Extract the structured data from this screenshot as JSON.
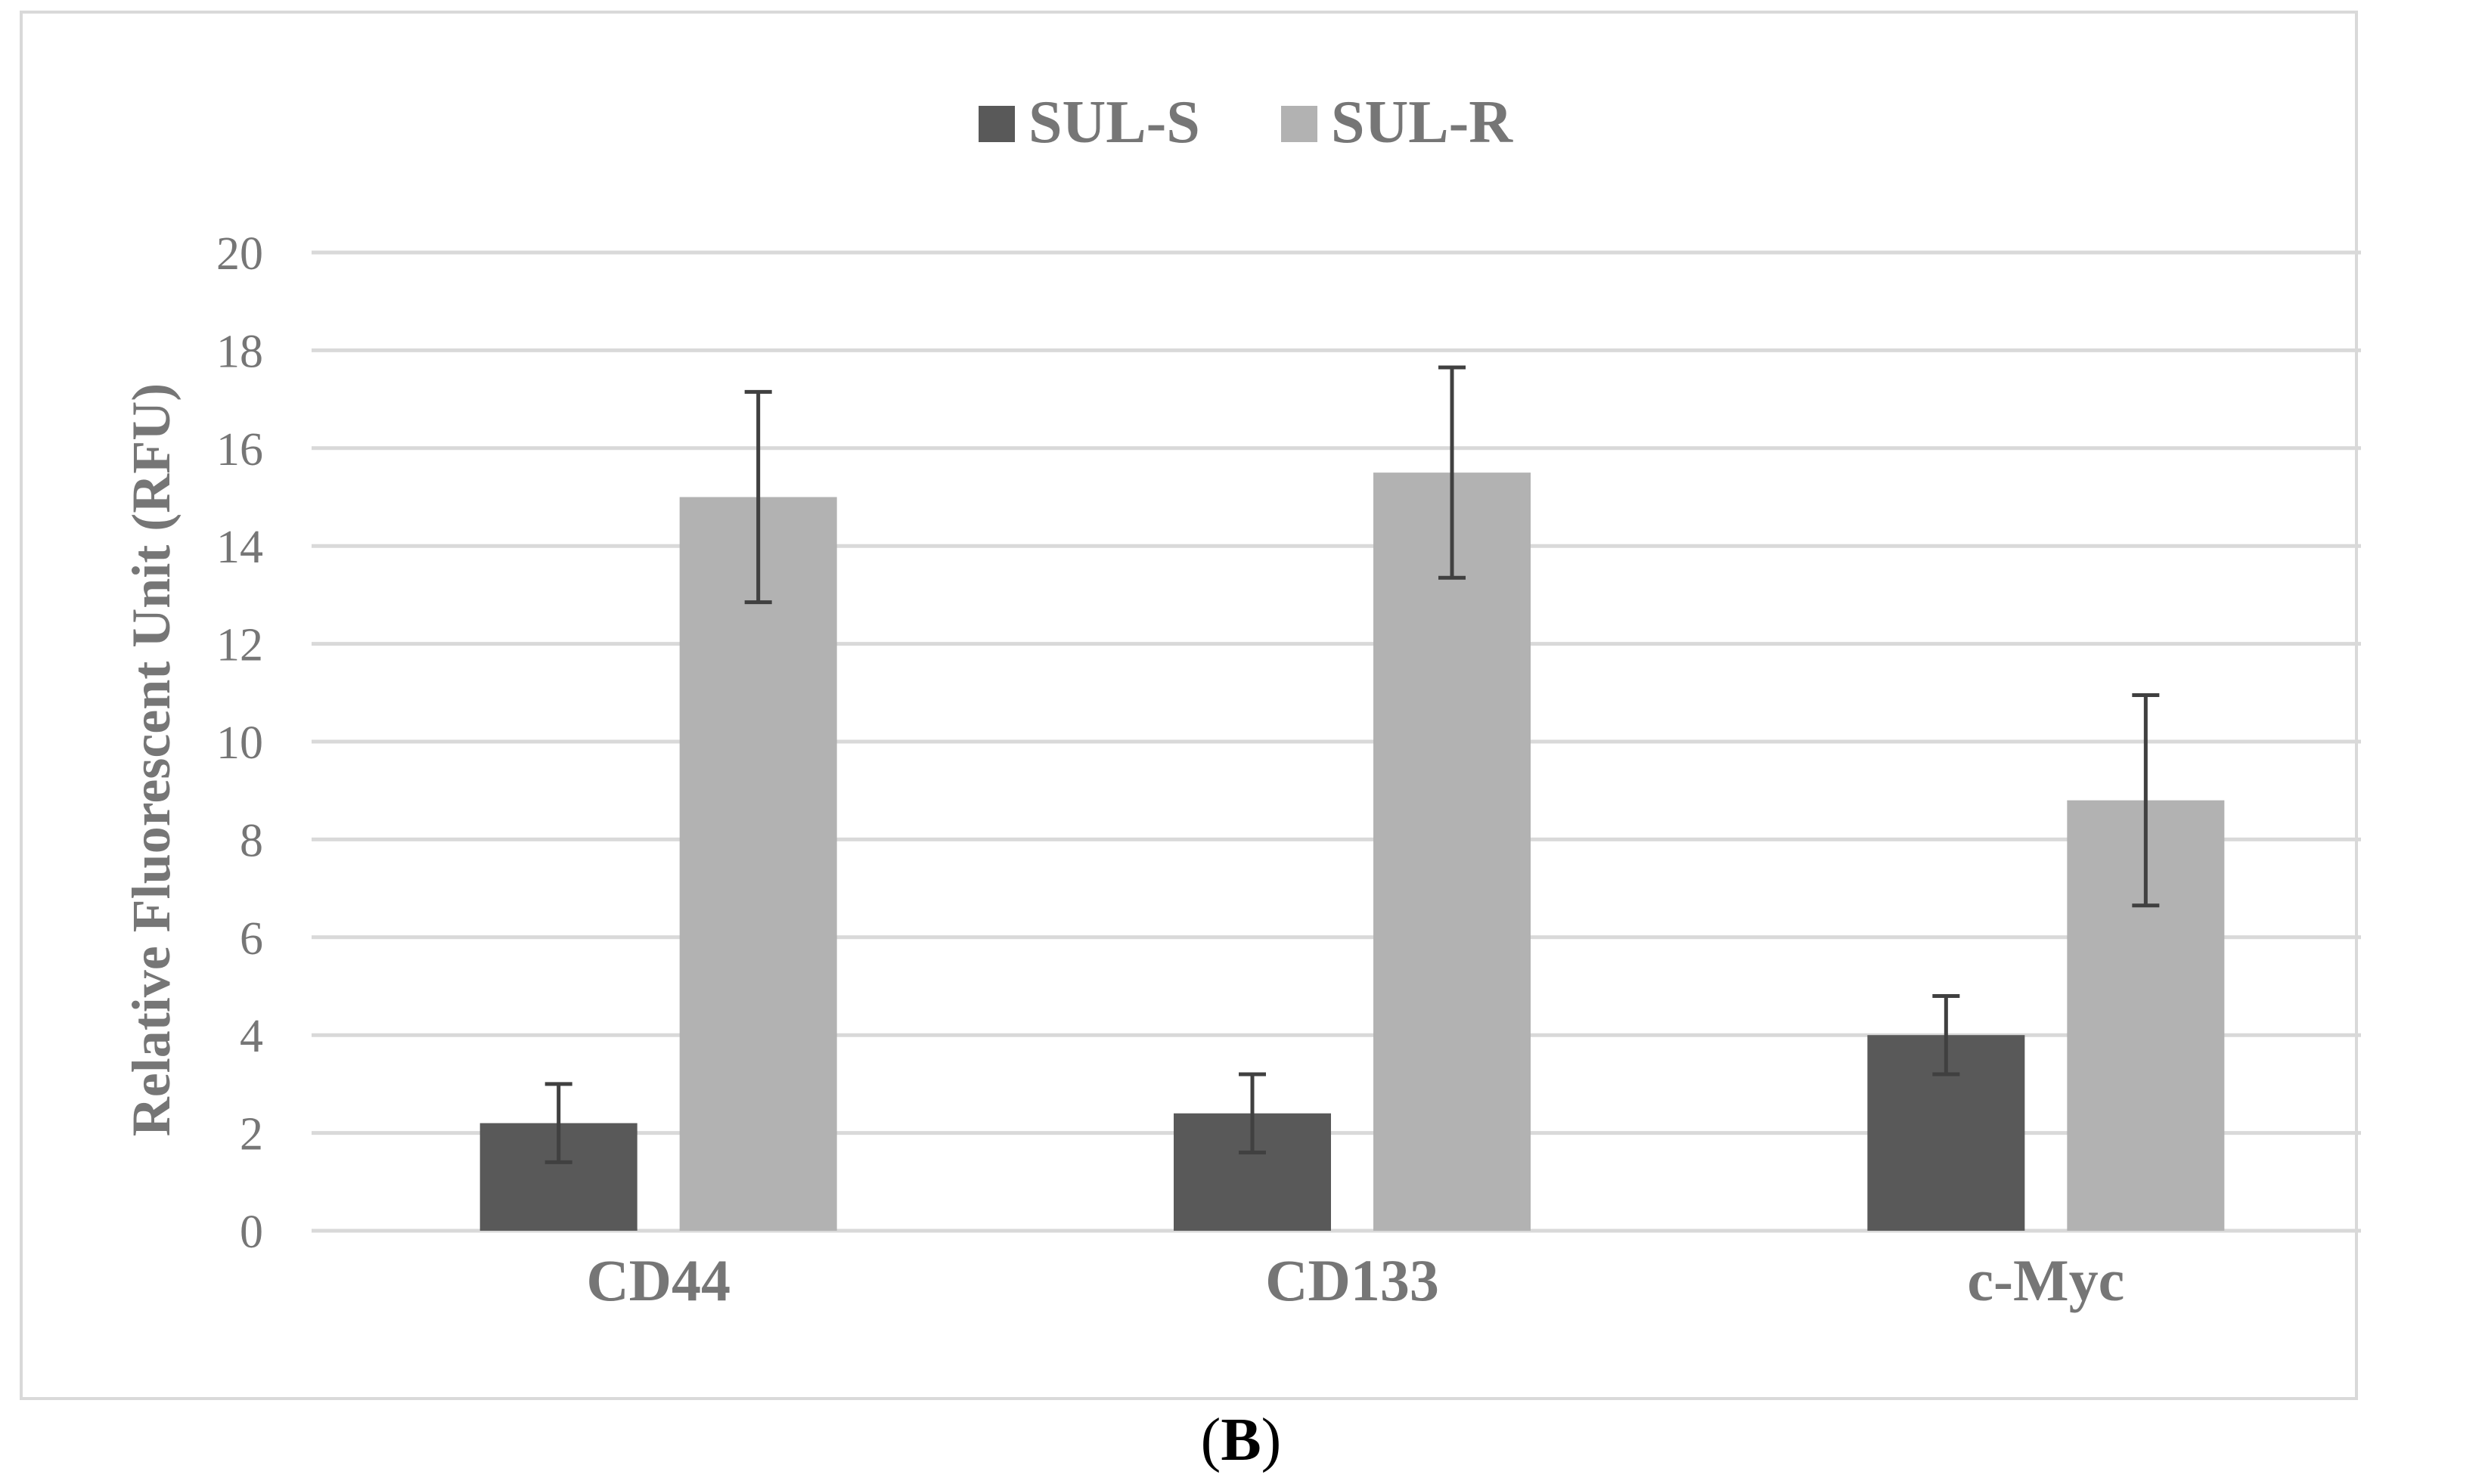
{
  "chart_data": {
    "type": "bar",
    "categories": [
      "CD44",
      "CD133",
      "c-Myc"
    ],
    "series": [
      {
        "name": "SUL-S",
        "values": [
          2.2,
          2.4,
          4.0
        ],
        "error": [
          0.8,
          0.8,
          0.8
        ]
      },
      {
        "name": "SUL-R",
        "values": [
          15.0,
          15.5,
          8.8
        ],
        "error": [
          2.15,
          2.15,
          2.15
        ]
      }
    ],
    "ylabel": "Relative Fluorescent Unit (RFU)",
    "xlabel": "",
    "ylim": [
      0,
      20
    ],
    "yticks": [
      0,
      2,
      4,
      6,
      8,
      10,
      12,
      14,
      16,
      18,
      20
    ],
    "grid": true,
    "legend_position": "top-center"
  },
  "colors": {
    "SUL-S": "#595959",
    "SUL-R": "#b2b2b2",
    "gridline": "#d9d9d9",
    "axis_text": "#767676",
    "error_bar": "#404040"
  },
  "panel_label": "B"
}
